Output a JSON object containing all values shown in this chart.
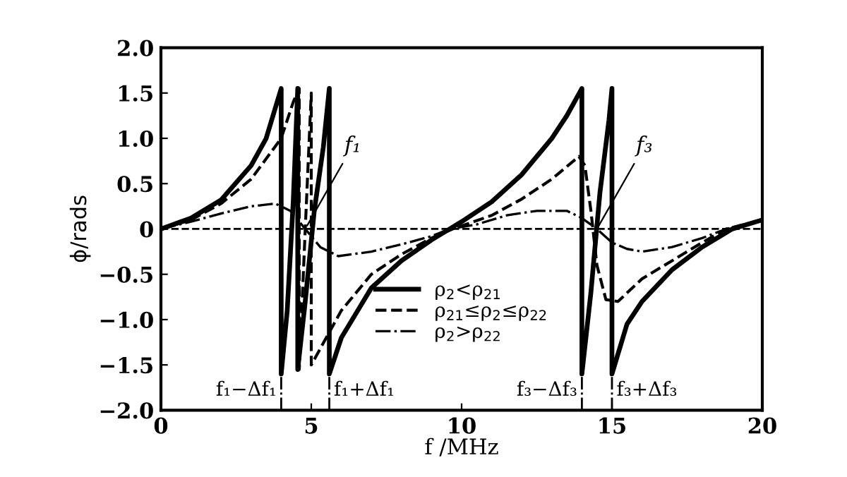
{
  "chart_data": {
    "type": "line",
    "xlabel": "f /MHz",
    "ylabel": "ϕ/rads",
    "xlim": [
      0,
      20
    ],
    "xticks": [
      0,
      5,
      10,
      15,
      20
    ],
    "ylim": [
      -2.0,
      2.0
    ],
    "yticks": [
      {
        "value": -2.0,
        "label": "−2.0"
      },
      {
        "value": -1.5,
        "label": "−1.5"
      },
      {
        "value": -1.0,
        "label": "−1.0"
      },
      {
        "value": -0.5,
        "label": "−0.5"
      },
      0,
      {
        "value": 0.5,
        "label": "0.5"
      },
      {
        "value": 1.0,
        "label": "1.0"
      },
      {
        "value": 1.5,
        "label": "1.5"
      },
      {
        "value": 2.0,
        "label": "2.0"
      }
    ],
    "grid": false,
    "legend": "bottom",
    "series": [
      {
        "name": "ρ$_{2}$<ρ$_{21}$",
        "color": "#000000",
        "line_style": "solid",
        "x": [
          0,
          1,
          2,
          3,
          3.5,
          4.0,
          4.0,
          4.2,
          4.4,
          4.55,
          4.55,
          4.8,
          5.1,
          5.4,
          5.6,
          5.6,
          6,
          7,
          8,
          9,
          9.6,
          10,
          11,
          12,
          13,
          13.5,
          14,
          14,
          14.3,
          14.6,
          14.9,
          15,
          15,
          15.5,
          16,
          17,
          18,
          19,
          20
        ],
        "values": [
          0,
          0.12,
          0.32,
          0.7,
          1.0,
          1.55,
          -1.6,
          -0.9,
          0.3,
          1.55,
          -1.55,
          -0.8,
          0.2,
          0.9,
          1.55,
          -1.6,
          -1.2,
          -0.65,
          -0.35,
          -0.12,
          0,
          0.08,
          0.3,
          0.6,
          1.0,
          1.25,
          1.55,
          -1.6,
          -0.7,
          0.4,
          1.2,
          1.55,
          -1.6,
          -1.05,
          -0.8,
          -0.45,
          -0.2,
          0,
          0.1
        ]
      },
      {
        "name": "ρ$_{21}$≤ρ$_{2}$≤ρ$_{22}$",
        "color": "#000000",
        "line_style": "dashed",
        "x": [
          0,
          1,
          2,
          3,
          4,
          4.4,
          4.6,
          4.6,
          4.8,
          5.0,
          5.0,
          5.5,
          6,
          7,
          8,
          9,
          9.7,
          11,
          12,
          13,
          13.9,
          14.1,
          14.3,
          14.5,
          14.8,
          15.2,
          16,
          17,
          18,
          18.8,
          20
        ],
        "values": [
          0,
          0.1,
          0.28,
          0.55,
          1.0,
          1.4,
          1.55,
          -1.55,
          0,
          1.5,
          -1.5,
          -1.2,
          -0.9,
          -0.5,
          -0.28,
          -0.1,
          0,
          0.15,
          0.33,
          0.55,
          0.8,
          0.7,
          0.2,
          -0.4,
          -0.78,
          -0.8,
          -0.55,
          -0.35,
          -0.15,
          0,
          0.1
        ]
      },
      {
        "name": "ρ$_{2}$>ρ$_{22}$",
        "color": "#000000",
        "line_style": "dashdot",
        "x": [
          0,
          1,
          2,
          3,
          3.8,
          4.3,
          4.8,
          5.3,
          5.9,
          7,
          8,
          9,
          9.6,
          10.5,
          11.5,
          12.5,
          13.5,
          14,
          14.5,
          15,
          15.5,
          16,
          17,
          18,
          18.8,
          20
        ],
        "values": [
          0,
          0.08,
          0.17,
          0.25,
          0.28,
          0.2,
          0,
          -0.2,
          -0.3,
          -0.25,
          -0.17,
          -0.08,
          0,
          0.05,
          0.15,
          0.2,
          0.2,
          0.12,
          0,
          -0.15,
          -0.22,
          -0.25,
          -0.2,
          -0.1,
          0,
          0.1
        ]
      }
    ],
    "ref_lines": [
      {
        "axis": "y",
        "value": 0,
        "line_style": "dashed",
        "color": "#000000"
      },
      {
        "axis": "x",
        "value": 4.0,
        "label": "f₁−Δf₁",
        "line_style": "dashdot",
        "color": "#000000"
      },
      {
        "axis": "x",
        "value": 5.6,
        "label": "f₁+Δf₁",
        "line_style": "dashdot",
        "color": "#000000"
      },
      {
        "axis": "x",
        "value": 14.0,
        "label": "f₃−Δf₃",
        "line_style": "dashdot",
        "color": "#000000"
      },
      {
        "axis": "x",
        "value": 15.0,
        "label": "f₃+Δf₃",
        "line_style": "dashdot",
        "color": "#000000"
      }
    ],
    "annotations": [
      {
        "text": "f₁",
        "x": 4.8,
        "y": 0
      },
      {
        "text": "f₃",
        "x": 14.5,
        "y": 0
      }
    ]
  }
}
